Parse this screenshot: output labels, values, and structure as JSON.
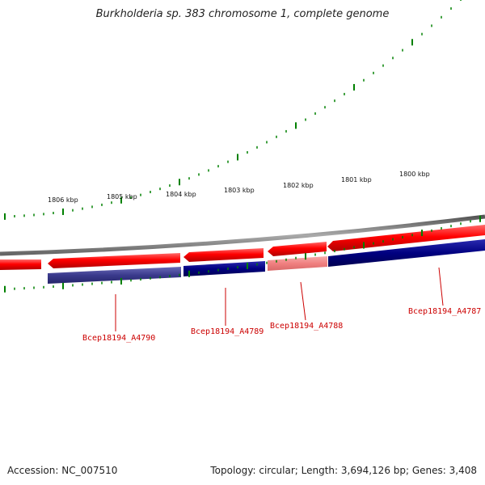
{
  "title": "Burkholderia sp. 383 chromosome 1, complete genome",
  "footer": {
    "accession": "Accession: NC_007510",
    "topology": "Topology: circular; Length: 3,694,126 bp; Genes: 3,408"
  },
  "scale_labels": [
    "1806 kbp",
    "1805 kbp",
    "1804 kbp",
    "1803 kbp",
    "1802 kbp",
    "1801 kbp",
    "1800 kbp"
  ],
  "gene_labels": [
    "Bcep18194_A4790",
    "Bcep18194_A4789",
    "Bcep18194_A4788",
    "Bcep18194_A4787"
  ],
  "colors": {
    "forward_strand": "#ff0000",
    "reverse_strand": "#000080",
    "highlight": "#f08080",
    "backbone": "#808080",
    "ticks": "#008000",
    "label": "#cc0000"
  }
}
